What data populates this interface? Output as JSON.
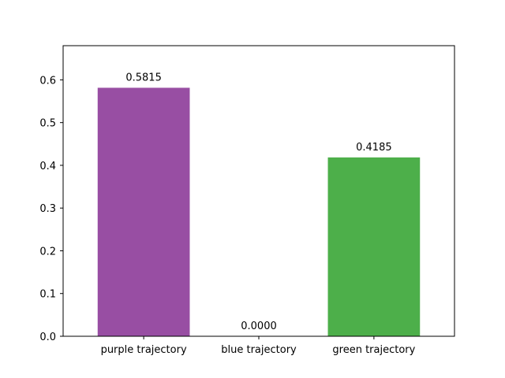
{
  "chart_data": {
    "type": "bar",
    "title": "",
    "xlabel": "",
    "ylabel": "",
    "categories": [
      "purple trajectory",
      "blue trajectory",
      "green trajectory"
    ],
    "values": [
      0.5815,
      0.0,
      0.4185
    ],
    "value_labels": [
      "0.5815",
      "0.0000",
      "0.4185"
    ],
    "colors": [
      "#984ea3",
      "#377eb8",
      "#4daf4a"
    ],
    "ylim": [
      0,
      0.68
    ],
    "yticks": [
      0.0,
      0.1,
      0.2,
      0.3,
      0.4,
      0.5,
      0.6
    ],
    "ytick_labels": [
      "0.0",
      "0.1",
      "0.2",
      "0.3",
      "0.4",
      "0.5",
      "0.6"
    ],
    "grid": false,
    "legend": "none"
  }
}
